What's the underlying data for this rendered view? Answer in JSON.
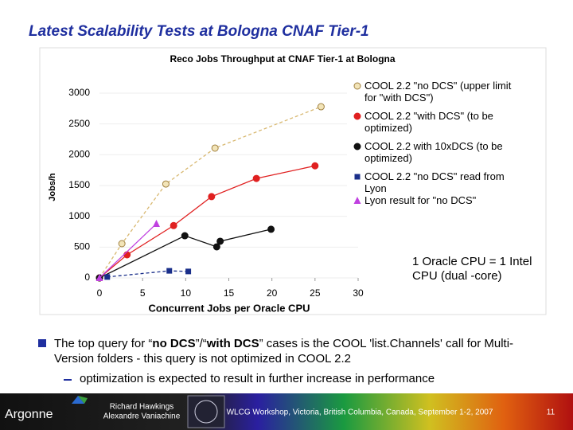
{
  "slide_title": "Latest Scalability Tests at Bologna CNAF Tier-1",
  "chart_data": {
    "type": "scatter",
    "title": "Reco Jobs Throughput at CNAF Tier-1 at Bologna",
    "x_label": "Concurrent Jobs per Oracle CPU",
    "y_label": "Jobs/h",
    "xlim": [
      0,
      30
    ],
    "xticks": [
      0,
      5,
      10,
      15,
      20,
      25,
      30
    ],
    "ylim": [
      0,
      3000
    ],
    "yticks": [
      0,
      500,
      1000,
      1500,
      2000,
      2500,
      3000
    ],
    "series": [
      {
        "name": "COOL 2.2 \"no DCS\" (upper limit for \"with DCS\")",
        "color": "#f2e4b8",
        "marker": "circle",
        "line_style": "dashed",
        "x": [
          0,
          2.6,
          7.7,
          13.4,
          25.7
        ],
        "values": [
          0,
          556,
          1525,
          2108,
          2780
        ]
      },
      {
        "name": "COOL 2.2 \"with DCS\" (to be optimized)",
        "color": "#e02020",
        "marker": "circle",
        "line_style": "solid",
        "x": [
          0,
          3.2,
          8.6,
          13,
          18.2,
          25
        ],
        "values": [
          0,
          375,
          850,
          1320,
          1615,
          1820
        ]
      },
      {
        "name": "COOL 2.2 with 10xDCS (to be optimized)",
        "color": "#111111",
        "marker": "circle",
        "line_style": "solid",
        "x": [
          0,
          9.9,
          13.6,
          14,
          19.9
        ],
        "values": [
          0,
          685,
          505,
          595,
          790
        ]
      },
      {
        "name": "COOL 2.2 \"no DCS\" read from Lyon",
        "color": "#1a2f8a",
        "marker": "square",
        "line_style": "dashed",
        "x": [
          0.9,
          8.1,
          10.3
        ],
        "values": [
          15,
          115,
          105
        ]
      },
      {
        "name": "Lyon result for \"no DCS\"",
        "color": "#c040e0",
        "marker": "triangle",
        "line_style": "solid",
        "x": [
          0,
          6.6
        ],
        "values": [
          0,
          880
        ]
      }
    ]
  },
  "annotation": "1 Oracle CPU = 1 Intel CPU (dual -core)",
  "bullet": [
    "The top query for “",
    "no DCS",
    "”/“",
    "with DCS",
    "” cases is the COOL 'list.Channels' call for Multi-Version folders - this query is not optimized in COOL 2.2"
  ],
  "sub_bullet": "optimization is expected to result in further increase in performance",
  "footer": {
    "logo": "Argonne",
    "authors": [
      "Richard Hawkings",
      "Alexandre Vaniachine"
    ],
    "event": "WLCG Workshop, Victoria, British Columbia, Canada, September 1-2, 2007",
    "page": "11"
  }
}
